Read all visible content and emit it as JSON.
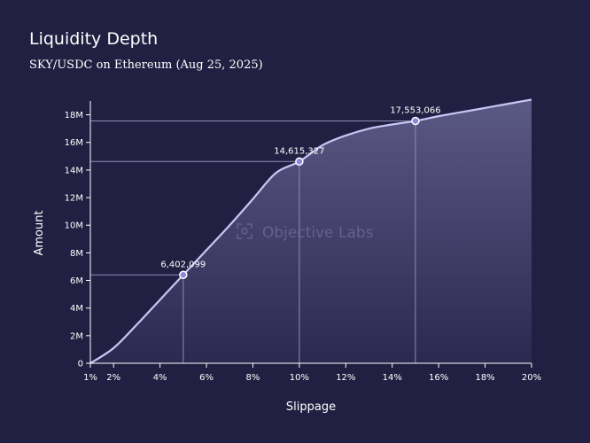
{
  "chart_data": {
    "type": "area",
    "title": "Liquidity Depth",
    "subtitle": "SKY/USDC on Ethereum (Aug 25, 2025)",
    "xlabel": "Slippage",
    "ylabel": "Amount",
    "xlim": [
      1,
      20
    ],
    "ylim": [
      0,
      19000000
    ],
    "x_ticks": [
      1,
      2,
      4,
      6,
      8,
      10,
      12,
      14,
      16,
      18,
      20
    ],
    "x_tick_labels": [
      "1%",
      "2%",
      "4%",
      "6%",
      "8%",
      "10%",
      "12%",
      "14%",
      "16%",
      "18%",
      "20%"
    ],
    "y_ticks": [
      0,
      2000000,
      4000000,
      6000000,
      8000000,
      10000000,
      12000000,
      14000000,
      16000000,
      18000000
    ],
    "y_tick_labels": [
      "0",
      "2M",
      "4M",
      "6M",
      "8M",
      "10M",
      "12M",
      "14M",
      "16M",
      "18M"
    ],
    "series": [
      {
        "x": [
          1,
          2,
          3,
          4,
          5,
          6,
          7,
          8,
          9,
          10,
          11,
          12,
          13,
          14,
          15,
          16,
          17,
          18,
          19,
          20
        ],
        "y": [
          0,
          1100000,
          2800000,
          4600000,
          6402099,
          8200000,
          10000000,
          11900000,
          13800000,
          14615327,
          15800000,
          16500000,
          17000000,
          17300000,
          17553066,
          17900000,
          18200000,
          18500000,
          18800000,
          19100000
        ]
      }
    ],
    "highlights": [
      {
        "x": 5,
        "y": 6402099,
        "label": "6,402,099"
      },
      {
        "x": 10,
        "y": 14615327,
        "label": "14,615,327"
      },
      {
        "x": 15,
        "y": 17553066,
        "label": "17,553,066"
      }
    ],
    "grid": false,
    "colors": {
      "background": "#222042",
      "line": "#c8c6f5",
      "fill_top": "#5b5985",
      "fill_bottom": "#2b2950",
      "guide": "#8e8cb4",
      "marker_fill": "#8b87e0"
    }
  },
  "watermark": {
    "text": "Objective Labs",
    "icon": "objective-labs-logo-icon"
  }
}
